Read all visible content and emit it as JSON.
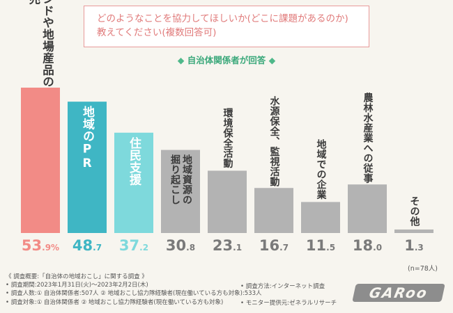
{
  "title": {
    "line1": "どのようなことを協力してほしいか(どこに課題があるのか)",
    "line2": "教えてください(複数回答可)"
  },
  "respondents": {
    "marker": "◆",
    "label": "自治体関係者が回答"
  },
  "chart_data": {
    "type": "bar",
    "categories": [
      "地域ブランドや地場産品の開発・販売",
      "地域のPR",
      "住民支援",
      "地域資源の掘り起こし",
      "環境保全活動",
      "水源保全、監視活動",
      "地域での企業",
      "農林水産業への従事",
      "その他"
    ],
    "label_lines": [
      [
        "地域ブランドや地場産品の",
        "開発・販売"
      ],
      [
        "地域のPR"
      ],
      [
        "住民支援"
      ],
      [
        "地域資源の",
        "掘り起こし"
      ],
      [
        "環境保全活動"
      ],
      [
        "水源保全、監視活動"
      ],
      [
        "地域での企業"
      ],
      [
        "農林水産業への従事"
      ],
      [
        "その他"
      ]
    ],
    "values": [
      53.9,
      48.7,
      37.2,
      30.8,
      23.1,
      16.7,
      11.5,
      18.0,
      1.3
    ],
    "value_labels": [
      {
        "int": "53",
        "dec": ".9",
        "unit": "%"
      },
      {
        "int": "48",
        "dec": ".7",
        "unit": ""
      },
      {
        "int": "37",
        "dec": ".2",
        "unit": ""
      },
      {
        "int": "30",
        "dec": ".8",
        "unit": ""
      },
      {
        "int": "23",
        "dec": ".1",
        "unit": ""
      },
      {
        "int": "16",
        "dec": ".7",
        "unit": ""
      },
      {
        "int": "11",
        "dec": ".5",
        "unit": ""
      },
      {
        "int": "18",
        "dec": ".0",
        "unit": ""
      },
      {
        "int": "1",
        "dec": ".3",
        "unit": ""
      }
    ],
    "colors": [
      "#f28b86",
      "#3fb6c4",
      "#7ed9dc",
      "#b3b3b3",
      "#b3b3b3",
      "#b3b3b3",
      "#b3b3b3",
      "#b3b3b3",
      "#b3b3b3"
    ],
    "label_colors": [
      "#ffffff",
      "#ffffff",
      "#ffffff",
      "#3a3a3a",
      "#3a3a3a",
      "#3a3a3a",
      "#3a3a3a",
      "#3a3a3a",
      "#3a3a3a"
    ],
    "value_colors": [
      "#f28b86",
      "#3fb6c4",
      "#7ed9dc",
      "#7a7a7a",
      "#7a7a7a",
      "#7a7a7a",
      "#7a7a7a",
      "#7a7a7a",
      "#7a7a7a"
    ],
    "ylim": [
      0,
      60
    ]
  },
  "n_label": "(n=78人)",
  "footer": {
    "title": "《 調査概要:「自治体の地域おこし」に関する調査 》",
    "period": "• 調査期間:2023年1月31日(火)〜2023年2月2日(木)",
    "count": "• 調査人数:① 自治体関係者:507人 ② 地域おこし協力隊経験者(現在働いている方も対象):533人",
    "target": "• 調査対象:① 自治体関係者 ② 地域おこし協力隊経験者(現在働いている方も対象)",
    "method": "• 調査方法:インターネット調査",
    "monitor": "• モニター提供元:ゼネラルリサーチ"
  },
  "logo": "GARoo"
}
